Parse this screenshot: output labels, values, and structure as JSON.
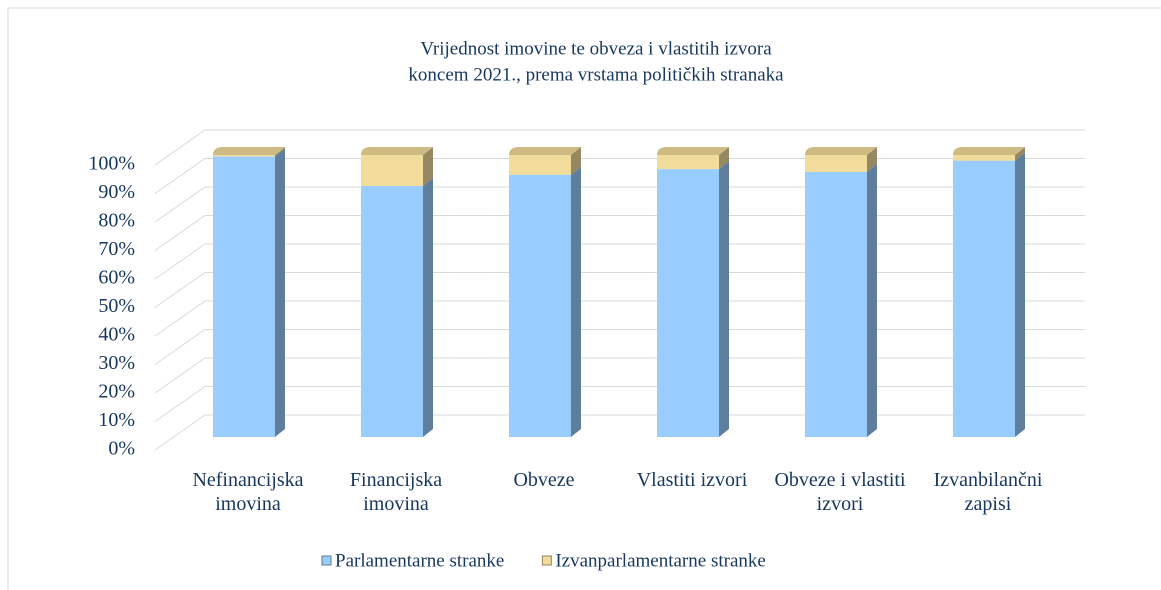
{
  "chart_data": {
    "type": "bar",
    "stacked": true,
    "title": [
      "Vrijednost imovine te obveza i vlastitih izvora",
      "koncem 2021., prema vrstama političkih stranaka"
    ],
    "categories": [
      "Nefinancijska imovina",
      "Financijska imovina",
      "Obveze",
      "Vlastiti izvori",
      "Obveze i vlastiti izvori",
      "Izvanbilančni zapisi"
    ],
    "series": [
      {
        "name": "Parlamentarne stranke",
        "color": "#99ccff",
        "values": [
          99.5,
          89,
          93,
          95,
          94,
          98
        ]
      },
      {
        "name": "Izvanparlamentarne stranke",
        "color": "#f2dc9b",
        "values": [
          0.5,
          11,
          7,
          5,
          6,
          2
        ]
      }
    ],
    "ylim": [
      0,
      100
    ],
    "yticks": [
      {
        "value": 0,
        "label": "0%"
      },
      {
        "value": 10,
        "label": "10%"
      },
      {
        "value": 20,
        "label": "20%"
      },
      {
        "value": 30,
        "label": "30%"
      },
      {
        "value": 40,
        "label": "40%"
      },
      {
        "value": 50,
        "label": "50%"
      },
      {
        "value": 60,
        "label": "60%"
      },
      {
        "value": 70,
        "label": "70%"
      },
      {
        "value": 80,
        "label": "80%"
      },
      {
        "value": 90,
        "label": "90%"
      },
      {
        "value": 100,
        "label": "100%"
      }
    ],
    "grid": true,
    "legend": "bottom"
  }
}
